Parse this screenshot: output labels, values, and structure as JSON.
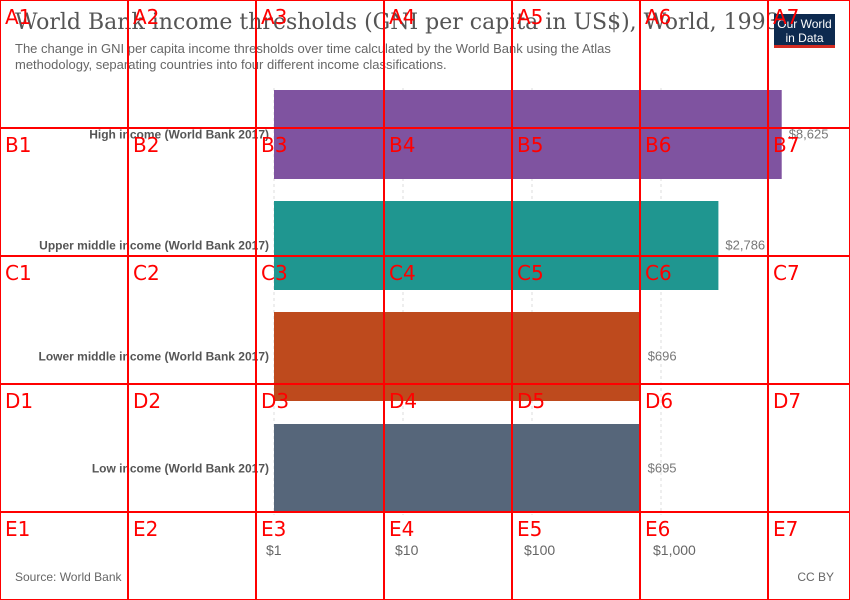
{
  "header": {
    "title": "World Bank income thresholds (GNI per capita in US$), World, 1993",
    "subtitle": "The change in GNI per capita income thresholds over time calculated by the World Bank using the Atlas methodology, separating countries into four different income classifications.",
    "logo_line1": "Our World",
    "logo_line2": "in Data"
  },
  "footer": {
    "source": "Source: World Bank",
    "license": "CC BY"
  },
  "chart_data": {
    "type": "bar",
    "orientation": "horizontal",
    "x_scale": "log",
    "xlim": [
      1,
      10000
    ],
    "x_ticks": [
      1,
      10,
      100,
      1000
    ],
    "x_tick_labels": [
      "$1",
      "$10",
      "$100",
      "$1,000"
    ],
    "categories": [
      "High income (World Bank 2017)",
      "Upper middle income (World Bank 2017)",
      "Lower middle income (World Bank 2017)",
      "Low income (World Bank 2017)"
    ],
    "values": [
      8625,
      2786,
      696,
      695
    ],
    "value_labels": [
      "$8,625",
      "$2,786",
      "$696",
      "$695"
    ],
    "colors": [
      "#7f53a0",
      "#1f9690",
      "#be4a1d",
      "#56667a"
    ],
    "grid": "vertical-dashed"
  },
  "overlay": {
    "rows": [
      "A",
      "B",
      "C",
      "D",
      "E"
    ],
    "cols": [
      "1",
      "2",
      "3",
      "4",
      "5",
      "6",
      "7"
    ],
    "color": "#ff0000"
  }
}
